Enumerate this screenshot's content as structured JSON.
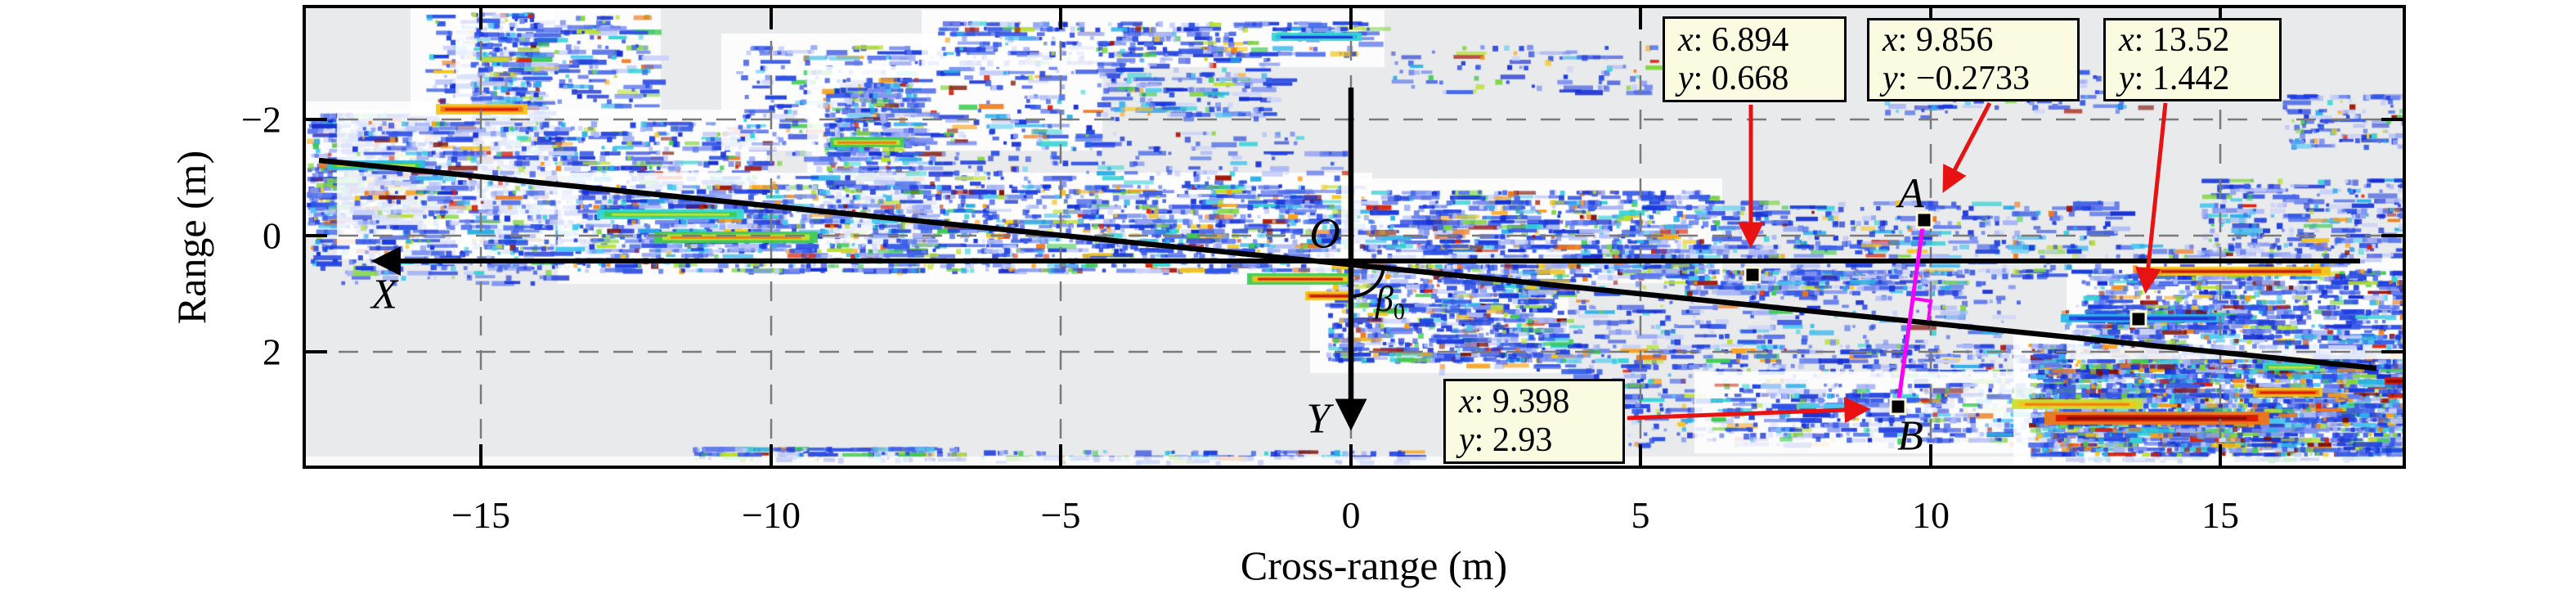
{
  "figure": {
    "x_axis": {
      "label": "Cross-range (m)",
      "ticks": [
        "−15",
        "−10",
        "−5",
        "0",
        "5",
        "10",
        "15"
      ]
    },
    "y_axis": {
      "label": "Range (m)",
      "ticks": [
        "−2",
        "0",
        "2"
      ]
    }
  },
  "labels": {
    "origin": "O",
    "x_arrow": "X",
    "y_arrow": "Y",
    "beta": "β",
    "beta_sub": "0",
    "point_a": "A",
    "point_b": "B"
  },
  "datatips": [
    {
      "x_label": "x",
      "x_sep": ": ",
      "x_value": "6.894",
      "y_label": "y",
      "y_sep": ": ",
      "y_value": "0.668"
    },
    {
      "x_label": "x",
      "x_sep": ": ",
      "x_value": "9.856",
      "y_label": "y",
      "y_sep": ": ",
      "y_value": "−0.2733"
    },
    {
      "x_label": "x",
      "x_sep": ": ",
      "x_value": "13.52",
      "y_label": "y",
      "y_sep": ": ",
      "y_value": "1.442"
    },
    {
      "x_label": "x",
      "x_sep": ": ",
      "x_value": "9.398",
      "y_label": "y",
      "y_sep": ": ",
      "y_value": "2.93"
    }
  ],
  "colors": {
    "plot_background": "#e9eaec",
    "grid": "#7a7a7a",
    "datatip_fill": "#fbfbe2",
    "annotation_arrow": "#e81212",
    "segment_ab": "#fa00fa",
    "axes": "#000000"
  },
  "chart_data": {
    "type": "heatmap",
    "title": "",
    "xlabel": "Cross-range (m)",
    "ylabel": "Range (m)",
    "xlim": [
      -18,
      18
    ],
    "ylim": [
      -4,
      4
    ],
    "y_axis_direction": "reversed (range increases downward)",
    "x_ticks": [
      -15,
      -10,
      -5,
      0,
      5,
      10,
      15
    ],
    "y_ticks": [
      -2,
      0,
      2
    ],
    "grid": "dashed, on",
    "legend": "none",
    "colormap": "jet speckle on light-gray background (SAR image)",
    "annotated_points": [
      {
        "name": "tip1",
        "x": 6.894,
        "y": 0.668
      },
      {
        "name": "A",
        "x": 9.856,
        "y": -0.2733
      },
      {
        "name": "tip3",
        "x": 13.52,
        "y": 1.442
      },
      {
        "name": "B",
        "x": 9.398,
        "y": 2.93
      }
    ],
    "overlays": [
      "origin O at (0, ~0.45) with X axis arrow pointing left and Y axis arrow pointing down",
      "slanted black line through O with data slope ~0.10 spanning x ≈ -17.8 to 17.7",
      "angle beta0 drawn between Y axis and slanted line (arc radius ~40 px)",
      "magenta segment from A to B, perpendicular to the slanted line (right-angle mark at intersection)",
      "red annotation arrows from each data-tip box to its square marker"
    ]
  },
  "speckle": {
    "background": "#e9eaec",
    "seed": 42,
    "palette": {
      "blues": [
        "#162fd2",
        "#2444e0",
        "#3a5fe8",
        "#1a3be0",
        "#2e52e6"
      ],
      "lights": [
        "#7e93f2",
        "#a9b6f7",
        "#c7cffa",
        "#5f79ee"
      ],
      "cyans": [
        "#28b0ea",
        "#33d3d6",
        "#49c8f0"
      ],
      "greens": [
        "#3ecb52",
        "#7ed63e",
        "#b9e02e"
      ],
      "warms": [
        "#f5c518",
        "#f07818",
        "#fa9e10"
      ],
      "reds": [
        "#dc2005",
        "#a31505",
        "#7d0d00"
      ]
    },
    "clusters": [
      [
        375,
        138,
        150,
        135,
        650,
        0.35,
        1
      ],
      [
        380,
        250,
        330,
        75,
        300,
        0.15,
        0
      ],
      [
        520,
        18,
        270,
        110,
        260,
        0.1,
        1
      ],
      [
        575,
        15,
        85,
        290,
        650,
        0.25,
        1
      ],
      [
        430,
        148,
        490,
        155,
        850,
        0.25,
        1
      ],
      [
        900,
        55,
        430,
        115,
        330,
        0.1,
        1
      ],
      [
        1005,
        95,
        115,
        205,
        620,
        0.45,
        1
      ],
      [
        1145,
        26,
        530,
        42,
        280,
        0.2,
        1
      ],
      [
        1340,
        58,
        210,
        85,
        200,
        0.1,
        0
      ],
      [
        700,
        225,
        960,
        108,
        1700,
        0.35,
        1
      ],
      [
        900,
        160,
        760,
        70,
        240,
        0.1,
        0
      ],
      [
        1658,
        232,
        430,
        100,
        700,
        0.3,
        1
      ],
      [
        2080,
        245,
        510,
        60,
        260,
        0.15,
        0
      ],
      [
        1620,
        322,
        280,
        120,
        650,
        0.3,
        1
      ],
      [
        1750,
        330,
        720,
        125,
        450,
        0.1,
        0
      ],
      [
        1900,
        420,
        720,
        125,
        650,
        0.15,
        0
      ],
      [
        2090,
        468,
        620,
        72,
        550,
        0.2,
        1
      ],
      [
        2480,
        420,
        460,
        140,
        2600,
        0.55,
        1
      ],
      [
        2545,
        330,
        392,
        95,
        700,
        0.3,
        1
      ],
      [
        2690,
        218,
        250,
        95,
        280,
        0.2,
        0
      ],
      [
        2790,
        115,
        150,
        65,
        110,
        0.05,
        0
      ],
      [
        845,
        546,
        330,
        16,
        130,
        0.1,
        0
      ],
      [
        1200,
        550,
        520,
        14,
        110,
        0.05,
        0
      ],
      [
        2300,
        85,
        320,
        55,
        90,
        0.05,
        0
      ],
      [
        1700,
        55,
        320,
        60,
        90,
        0.15,
        0
      ],
      [
        1660,
        298,
        1240,
        42,
        420,
        0.2,
        0
      ],
      [
        2520,
        372,
        270,
        38,
        170,
        0.25,
        0
      ],
      [
        2050,
        330,
        340,
        30,
        200,
        0.2,
        0
      ],
      [
        380,
        300,
        300,
        45,
        120,
        0.05,
        0
      ]
    ],
    "streaks": [
      [
        533,
        127,
        112,
        13,
        "#f5c518",
        "#f07818",
        "#d81800"
      ],
      [
        800,
        283,
        200,
        14,
        "#3ecb52",
        "#c8e030",
        "#f07818"
      ],
      [
        730,
        256,
        180,
        12,
        "#35d8d0",
        "#3ecb52",
        "#c8e030"
      ],
      [
        1525,
        334,
        130,
        14,
        "#3ecb52",
        "#f5c518",
        "#d81800"
      ],
      [
        1596,
        356,
        60,
        11,
        "#f5c518",
        "#f07818",
        "#c01505"
      ],
      [
        1015,
        168,
        90,
        12,
        "#3ecb52",
        "#c8e030",
        "#f07818"
      ],
      [
        400,
        196,
        120,
        12,
        "#28b9e8",
        "#3ecb52",
        "#c8e030"
      ],
      [
        1555,
        40,
        110,
        10,
        "#35d8d0",
        "#28b9e8",
        "#1a35d4"
      ],
      [
        2520,
        384,
        200,
        10,
        "#28b9e8",
        "#2a4ae0",
        "#1a35d4"
      ],
      [
        2500,
        503,
        275,
        16,
        "#f07818",
        "#d81800",
        "#7d0d00"
      ],
      [
        2755,
        474,
        85,
        11,
        "#f5c518",
        "#f07818",
        "#d81800"
      ],
      [
        2767,
        444,
        70,
        9,
        "#35d8d0",
        "#3ecb52",
        "#c8e030"
      ],
      [
        2916,
        461,
        26,
        9,
        "#d81800",
        "#c01505",
        "#7d0d00"
      ],
      [
        2620,
        326,
        230,
        11,
        "#f5c518",
        "#f07818",
        "#c01505"
      ],
      [
        2460,
        488,
        160,
        12,
        "#c8e030",
        "#f5c518",
        "#f07818"
      ]
    ]
  }
}
